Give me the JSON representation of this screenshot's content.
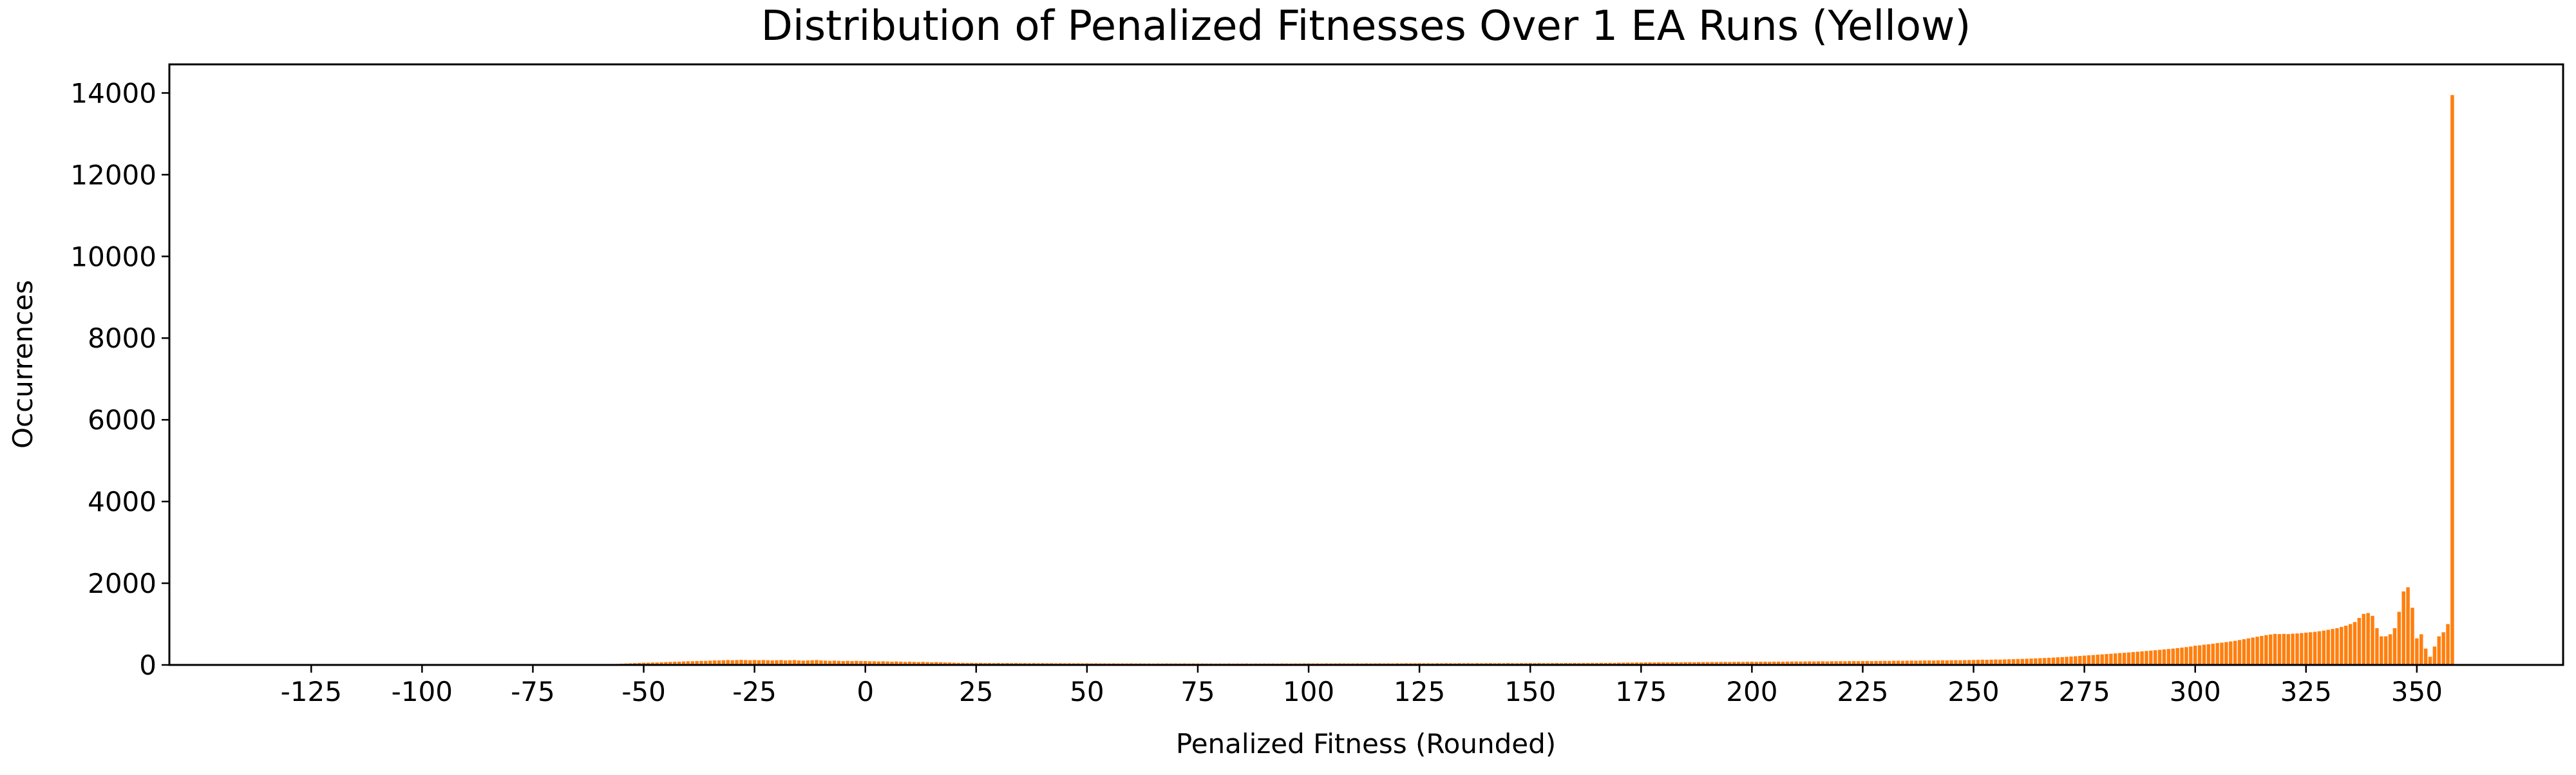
{
  "chart_data": {
    "type": "bar",
    "title": "Distribution of Penalized Fitnesses Over 1 EA Runs (Yellow)",
    "x_label": "Penalized Fitness (Rounded)",
    "y_label": "Occurrences",
    "color": "#ff7f0e",
    "xlim": [
      -157,
      383
    ],
    "ylim": [
      0,
      14700
    ],
    "xticks": [
      -125,
      -100,
      -75,
      -50,
      -25,
      0,
      25,
      50,
      75,
      100,
      125,
      150,
      175,
      200,
      225,
      250,
      275,
      300,
      325,
      350
    ],
    "yticks": [
      0,
      2000,
      4000,
      6000,
      8000,
      10000,
      12000,
      14000
    ],
    "x": [
      -57,
      -56,
      -55,
      -54,
      -53,
      -52,
      -51,
      -50,
      -49,
      -48,
      -47,
      -46,
      -45,
      -44,
      -43,
      -42,
      -41,
      -40,
      -39,
      -38,
      -37,
      -36,
      -35,
      -34,
      -33,
      -32,
      -31,
      -30,
      -29,
      -28,
      -27,
      -26,
      -25,
      -24,
      -23,
      -22,
      -21,
      -20,
      -19,
      -18,
      -17,
      -16,
      -15,
      -14,
      -13,
      -12,
      -11,
      -10,
      -9,
      -8,
      -7,
      -6,
      -5,
      -4,
      -3,
      -2,
      -1,
      0,
      1,
      2,
      3,
      4,
      5,
      6,
      7,
      8,
      9,
      10,
      11,
      12,
      13,
      14,
      15,
      16,
      17,
      18,
      19,
      20,
      21,
      22,
      23,
      24,
      25,
      26,
      27,
      28,
      29,
      30,
      31,
      32,
      33,
      34,
      35,
      36,
      37,
      38,
      39,
      40,
      41,
      42,
      43,
      44,
      45,
      46,
      47,
      48,
      49,
      50,
      51,
      52,
      53,
      54,
      55,
      56,
      57,
      58,
      59,
      60,
      61,
      62,
      63,
      64,
      65,
      66,
      67,
      68,
      69,
      70,
      71,
      72,
      73,
      74,
      75,
      76,
      77,
      78,
      79,
      80,
      81,
      82,
      83,
      84,
      85,
      86,
      87,
      88,
      89,
      90,
      91,
      92,
      93,
      94,
      95,
      96,
      97,
      98,
      99,
      100,
      101,
      102,
      103,
      104,
      105,
      106,
      107,
      108,
      109,
      110,
      111,
      112,
      113,
      114,
      115,
      116,
      117,
      118,
      119,
      120,
      121,
      122,
      123,
      124,
      125,
      126,
      127,
      128,
      129,
      130,
      131,
      132,
      133,
      134,
      135,
      136,
      137,
      138,
      139,
      140,
      141,
      142,
      143,
      144,
      145,
      146,
      147,
      148,
      149,
      150,
      151,
      152,
      153,
      154,
      155,
      156,
      157,
      158,
      159,
      160,
      161,
      162,
      163,
      164,
      165,
      166,
      167,
      168,
      169,
      170,
      171,
      172,
      173,
      174,
      175,
      176,
      177,
      178,
      179,
      180,
      181,
      182,
      183,
      184,
      185,
      186,
      187,
      188,
      189,
      190,
      191,
      192,
      193,
      194,
      195,
      196,
      197,
      198,
      199,
      200,
      201,
      202,
      203,
      204,
      205,
      206,
      207,
      208,
      209,
      210,
      211,
      212,
      213,
      214,
      215,
      216,
      217,
      218,
      219,
      220,
      221,
      222,
      223,
      224,
      225,
      226,
      227,
      228,
      229,
      230,
      231,
      232,
      233,
      234,
      235,
      236,
      237,
      238,
      239,
      240,
      241,
      242,
      243,
      244,
      245,
      246,
      247,
      248,
      249,
      250,
      251,
      252,
      253,
      254,
      255,
      256,
      257,
      258,
      259,
      260,
      261,
      262,
      263,
      264,
      265,
      266,
      267,
      268,
      269,
      270,
      271,
      272,
      273,
      274,
      275,
      276,
      277,
      278,
      279,
      280,
      281,
      282,
      283,
      284,
      285,
      286,
      287,
      288,
      289,
      290,
      291,
      292,
      293,
      294,
      295,
      296,
      297,
      298,
      299,
      300,
      301,
      302,
      303,
      304,
      305,
      306,
      307,
      308,
      309,
      310,
      311,
      312,
      313,
      314,
      315,
      316,
      317,
      318,
      319,
      320,
      321,
      322,
      323,
      324,
      325,
      326,
      327,
      328,
      329,
      330,
      331,
      332,
      333,
      334,
      335,
      336,
      337,
      338,
      339,
      340,
      341,
      342,
      343,
      344,
      345,
      346,
      347,
      348,
      349,
      350,
      351,
      352,
      353,
      354,
      355,
      356,
      357,
      358
    ],
    "values": [
      20,
      25,
      30,
      35,
      40,
      45,
      50,
      55,
      55,
      60,
      60,
      65,
      70,
      75,
      80,
      80,
      85,
      90,
      90,
      95,
      100,
      100,
      105,
      110,
      110,
      115,
      120,
      115,
      120,
      125,
      120,
      115,
      120,
      115,
      120,
      115,
      110,
      115,
      120,
      110,
      115,
      120,
      110,
      105,
      110,
      115,
      120,
      110,
      105,
      100,
      105,
      100,
      95,
      100,
      95,
      100,
      95,
      95,
      90,
      90,
      85,
      90,
      85,
      80,
      85,
      80,
      75,
      80,
      75,
      70,
      75,
      70,
      65,
      70,
      65,
      60,
      60,
      55,
      50,
      52,
      48,
      50,
      47,
      50,
      46,
      48,
      45,
      48,
      45,
      47,
      44,
      46,
      43,
      45,
      42,
      44,
      41,
      44,
      42,
      43,
      40,
      42,
      40,
      41,
      39,
      40,
      38,
      40,
      38,
      39,
      37,
      38,
      36,
      38,
      35,
      37,
      36,
      38,
      36,
      37,
      35,
      36,
      34,
      36,
      35,
      37,
      36,
      36,
      35,
      37,
      34,
      36,
      35,
      36,
      34,
      35,
      33,
      35,
      34,
      36,
      33,
      35,
      34,
      36,
      33,
      35,
      34,
      36,
      34,
      35,
      33,
      36,
      35,
      34,
      36,
      35,
      37,
      38,
      36,
      37,
      35,
      38,
      36,
      37,
      39,
      38,
      36,
      37,
      38,
      36,
      39,
      37,
      38,
      40,
      38,
      39,
      37,
      40,
      38,
      41,
      39,
      40,
      42,
      40,
      41,
      39,
      42,
      41,
      43,
      42,
      40,
      44,
      42,
      43,
      41,
      44,
      42,
      43,
      45,
      42,
      44,
      43,
      46,
      44,
      42,
      45,
      43,
      46,
      44,
      47,
      45,
      43,
      46,
      48,
      45,
      47,
      46,
      48,
      46,
      49,
      47,
      50,
      48,
      51,
      49,
      52,
      50,
      55,
      56,
      58,
      57,
      60,
      59,
      61,
      62,
      60,
      63,
      64,
      62,
      65,
      66,
      64,
      67,
      68,
      66,
      69,
      70,
      70,
      72,
      71,
      73,
      74,
      72,
      75,
      76,
      74,
      77,
      78,
      76,
      79,
      80,
      78,
      81,
      82,
      80,
      83,
      84,
      85,
      83,
      86,
      87,
      85,
      88,
      89,
      87,
      90,
      91,
      92,
      90,
      93,
      94,
      92,
      95,
      96,
      94,
      97,
      98,
      100,
      98,
      101,
      103,
      101,
      104,
      106,
      104,
      107,
      109,
      110,
      108,
      112,
      114,
      112,
      115,
      117,
      115,
      118,
      120,
      122,
      125,
      128,
      126,
      130,
      133,
      131,
      135,
      138,
      142,
      145,
      148,
      152,
      156,
      160,
      165,
      170,
      175,
      180,
      186,
      192,
      198,
      205,
      212,
      220,
      228,
      235,
      242,
      250,
      258,
      266,
      274,
      282,
      290,
      298,
      306,
      315,
      324,
      333,
      342,
      351,
      360,
      370,
      380,
      390,
      400,
      412,
      424,
      436,
      450,
      470,
      480,
      495,
      505,
      520,
      535,
      545,
      560,
      575,
      590,
      610,
      630,
      650,
      670,
      690,
      710,
      730,
      745,
      760,
      755,
      760,
      755,
      765,
      770,
      780,
      790,
      800,
      810,
      825,
      840,
      860,
      880,
      900,
      930,
      960,
      1000,
      1050,
      1150,
      1250,
      1270,
      1200,
      900,
      700,
      700,
      750,
      900,
      1300,
      1800,
      1900,
      1400,
      650,
      750,
      400,
      200,
      450,
      700,
      800,
      1000,
      13950
    ]
  }
}
